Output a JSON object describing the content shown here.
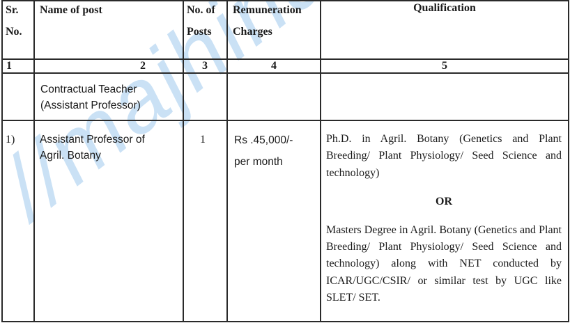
{
  "watermark": "//majhinaukri",
  "table": {
    "headers": {
      "sr_no_line1": "Sr.",
      "sr_no_line2": "No.",
      "name_of_post": "Name of post",
      "no_of_posts_line1": "No. of",
      "no_of_posts_line2": "Posts",
      "remuneration_line1": "Remuneration",
      "remuneration_line2": "Charges",
      "qualification": "Qualification"
    },
    "column_numbers": [
      "1",
      "2",
      "3",
      "4",
      "5"
    ],
    "section_row": {
      "line1": "Contractual  Teacher",
      "line2": "(Assistant Professor)"
    },
    "rows": [
      {
        "sr_no": "1)",
        "post_line1": "Assistant Professor of",
        "post_line2": "Agril. Botany",
        "posts": "1",
        "remuneration_line1": "Rs .45,000/-",
        "remuneration_line2": "per month",
        "qualification_part1": "Ph.D. in Agril. Botany (Genetics and Plant Breeding/ Plant Physiology/ Seed Science and technology)",
        "qualification_or": "OR",
        "qualification_part2": "Masters Degree in Agril. Botany (Genetics and Plant Breeding/ Plant Physiology/ Seed Science and technology) along with NET conducted by ICAR/UGC/CSIR/ or similar test by UGC like SLET/ SET."
      }
    ]
  }
}
